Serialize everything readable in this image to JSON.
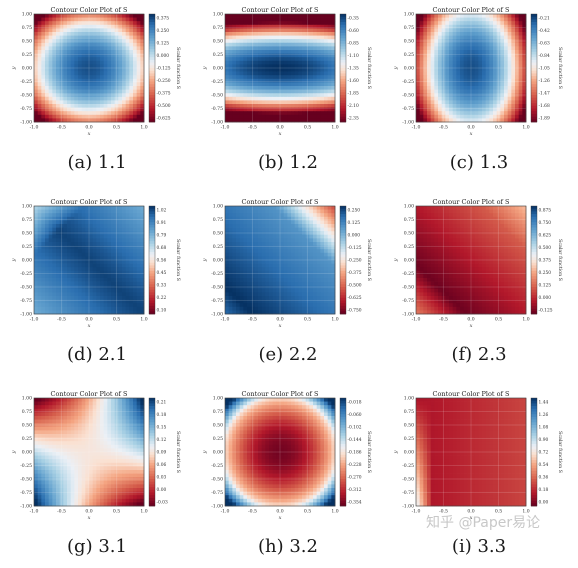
{
  "watermark": "知乎 @Paper易论",
  "chart_data": [
    {
      "id": "a",
      "caption": "(a) 1.1",
      "type": "heatmap",
      "title": "Contour Color Plot of S",
      "xlabel": "x",
      "ylabel": "y",
      "colorbar_label": "Scalar function S",
      "xlim": [
        -1,
        1
      ],
      "ylim": [
        -1,
        1
      ],
      "x_ticks": [
        "-1.0",
        "-0.5",
        "0.0",
        "0.5",
        "1.0"
      ],
      "y_ticks": [
        "1.00",
        "0.75",
        "0.50",
        "0.25",
        "0.00",
        "-0.25",
        "-0.50",
        "-0.75",
        "-1.00"
      ],
      "colorbar_ticks": [
        "0.375",
        "0.250",
        "0.125",
        "0.000",
        "-0.125",
        "-0.250",
        "-0.375",
        "-0.500",
        "-0.625"
      ],
      "pattern": "bowl",
      "colormap": "RdBu"
    },
    {
      "id": "b",
      "caption": "(b) 1.2",
      "type": "heatmap",
      "title": "Contour Color Plot of S",
      "xlabel": "x",
      "ylabel": "y",
      "colorbar_label": "Scalar function S",
      "xlim": [
        -1,
        1
      ],
      "ylim": [
        -1,
        1
      ],
      "x_ticks": [
        "-1.0",
        "-0.5",
        "0.0",
        "0.5",
        "1.0"
      ],
      "y_ticks": [
        "1.00",
        "0.75",
        "0.50",
        "0.25",
        "0.00",
        "-0.25",
        "-0.50",
        "-0.75",
        "-1.00"
      ],
      "colorbar_ticks": [
        "-0.35",
        "-0.60",
        "-0.85",
        "-1.10",
        "-1.35",
        "-1.60",
        "-1.85",
        "-2.10",
        "-2.35"
      ],
      "pattern": "horizontal-band",
      "colormap": "RdBu"
    },
    {
      "id": "c",
      "caption": "(c) 1.3",
      "type": "heatmap",
      "title": "Contour Color Plot of S",
      "xlabel": "x",
      "ylabel": "y",
      "colorbar_label": "Scalar function S",
      "xlim": [
        -1,
        1
      ],
      "ylim": [
        -1,
        1
      ],
      "x_ticks": [
        "-1.0",
        "-0.5",
        "0.0",
        "0.5",
        "1.0"
      ],
      "y_ticks": [
        "1.00",
        "0.75",
        "0.50",
        "0.25",
        "0.00",
        "-0.25",
        "-0.50",
        "-0.75",
        "-1.00"
      ],
      "colorbar_ticks": [
        "-0.21",
        "-0.42",
        "-0.63",
        "-0.84",
        "-1.05",
        "-1.26",
        "-1.47",
        "-1.68",
        "-1.89"
      ],
      "pattern": "bowl-narrow",
      "colormap": "RdBu"
    },
    {
      "id": "d",
      "caption": "(d) 2.1",
      "type": "heatmap",
      "title": "Contour Color Plot of S",
      "xlabel": "x",
      "ylabel": "y",
      "colorbar_label": "Scalar function S",
      "xlim": [
        -1,
        1
      ],
      "ylim": [
        -1,
        1
      ],
      "x_ticks": [
        "-1.0",
        "-0.5",
        "0.0",
        "0.5",
        "1.0"
      ],
      "y_ticks": [
        "1.00",
        "0.75",
        "0.50",
        "0.25",
        "0.00",
        "-0.25",
        "-0.50",
        "-0.75",
        "-1.00"
      ],
      "colorbar_ticks": [
        "1.02",
        "0.91",
        "0.79",
        "0.68",
        "0.56",
        "0.45",
        "0.33",
        "0.22",
        "0.10"
      ],
      "pattern": "diagonal-blue",
      "colormap": "RdBu"
    },
    {
      "id": "e",
      "caption": "(e) 2.2",
      "type": "heatmap",
      "title": "Contour Color Plot of S",
      "xlabel": "x",
      "ylabel": "y",
      "colorbar_label": "Scalar function S",
      "xlim": [
        -1,
        1
      ],
      "ylim": [
        -1,
        1
      ],
      "x_ticks": [
        "-1.0",
        "-0.5",
        "0.0",
        "0.5",
        "1.0"
      ],
      "y_ticks": [
        "1.00",
        "0.75",
        "0.50",
        "0.25",
        "0.00",
        "-0.25",
        "-0.50",
        "-0.75",
        "-1.00"
      ],
      "colorbar_ticks": [
        "0.250",
        "0.125",
        "0.000",
        "-0.125",
        "-0.250",
        "-0.375",
        "-0.500",
        "-0.625",
        "-0.750"
      ],
      "pattern": "diagonal-red-corner",
      "colormap": "RdBu"
    },
    {
      "id": "f",
      "caption": "(f) 2.3",
      "type": "heatmap",
      "title": "Contour Color Plot of S",
      "xlabel": "x",
      "ylabel": "y",
      "colorbar_label": "Scalar function S",
      "xlim": [
        -1,
        1
      ],
      "ylim": [
        -1,
        1
      ],
      "x_ticks": [
        "-1.0",
        "-0.5",
        "0.0",
        "0.5",
        "1.0"
      ],
      "y_ticks": [
        "1.00",
        "0.75",
        "0.50",
        "0.25",
        "0.00",
        "-0.25",
        "-0.50",
        "-0.75",
        "-1.00"
      ],
      "colorbar_ticks": [
        "0.875",
        "0.750",
        "0.625",
        "0.500",
        "0.375",
        "0.250",
        "0.125",
        "0.000",
        "-0.125"
      ],
      "pattern": "diagonal-red",
      "colormap": "RdBu"
    },
    {
      "id": "g",
      "caption": "(g) 3.1",
      "type": "heatmap",
      "title": "Contour Color Plot of S",
      "xlabel": "x",
      "ylabel": "y",
      "colorbar_label": "Scalar function S",
      "xlim": [
        -1,
        1
      ],
      "ylim": [
        -1,
        1
      ],
      "x_ticks": [
        "-1.0",
        "-0.5",
        "0.0",
        "0.5",
        "1.0"
      ],
      "y_ticks": [
        "1.00",
        "0.75",
        "0.50",
        "0.25",
        "0.00",
        "-0.25",
        "-0.50",
        "-0.75",
        "-1.00"
      ],
      "colorbar_ticks": [
        "0.21",
        "0.18",
        "0.15",
        "0.12",
        "0.09",
        "0.06",
        "0.03",
        "0.00",
        "-0.03"
      ],
      "pattern": "saddle",
      "colormap": "RdBu"
    },
    {
      "id": "h",
      "caption": "(h) 3.2",
      "type": "heatmap",
      "title": "Contour Color Plot of S",
      "xlabel": "x",
      "ylabel": "y",
      "colorbar_label": "Scalar function S",
      "xlim": [
        -1,
        1
      ],
      "ylim": [
        -1,
        1
      ],
      "x_ticks": [
        "-1.0",
        "-0.5",
        "0.0",
        "0.5",
        "1.0"
      ],
      "y_ticks": [
        "1.00",
        "0.75",
        "0.50",
        "0.25",
        "0.00",
        "-0.25",
        "-0.50",
        "-0.75",
        "-1.00"
      ],
      "colorbar_ticks": [
        "-0.018",
        "-0.060",
        "-0.102",
        "-0.144",
        "-0.186",
        "-0.228",
        "-0.270",
        "-0.312",
        "-0.354"
      ],
      "pattern": "red-bowl",
      "colormap": "RdBu"
    },
    {
      "id": "i",
      "caption": "(i) 3.3",
      "type": "heatmap",
      "title": "Contour Color Plot of S",
      "xlabel": "x",
      "ylabel": "y",
      "colorbar_label": "Scalar function S",
      "xlim": [
        -1,
        1
      ],
      "ylim": [
        -1,
        1
      ],
      "x_ticks": [
        "-1.0",
        "-0.5",
        "0.0",
        "0.5",
        "1.0"
      ],
      "y_ticks": [
        "1.00",
        "0.75",
        "0.50",
        "0.25",
        "0.00",
        "-0.25",
        "-0.50",
        "-0.75",
        "-1.00"
      ],
      "colorbar_ticks": [
        "1.44",
        "1.26",
        "1.08",
        "0.90",
        "0.72",
        "0.54",
        "0.36",
        "0.18",
        "0.00"
      ],
      "pattern": "red-flat",
      "colormap": "RdBu"
    }
  ]
}
